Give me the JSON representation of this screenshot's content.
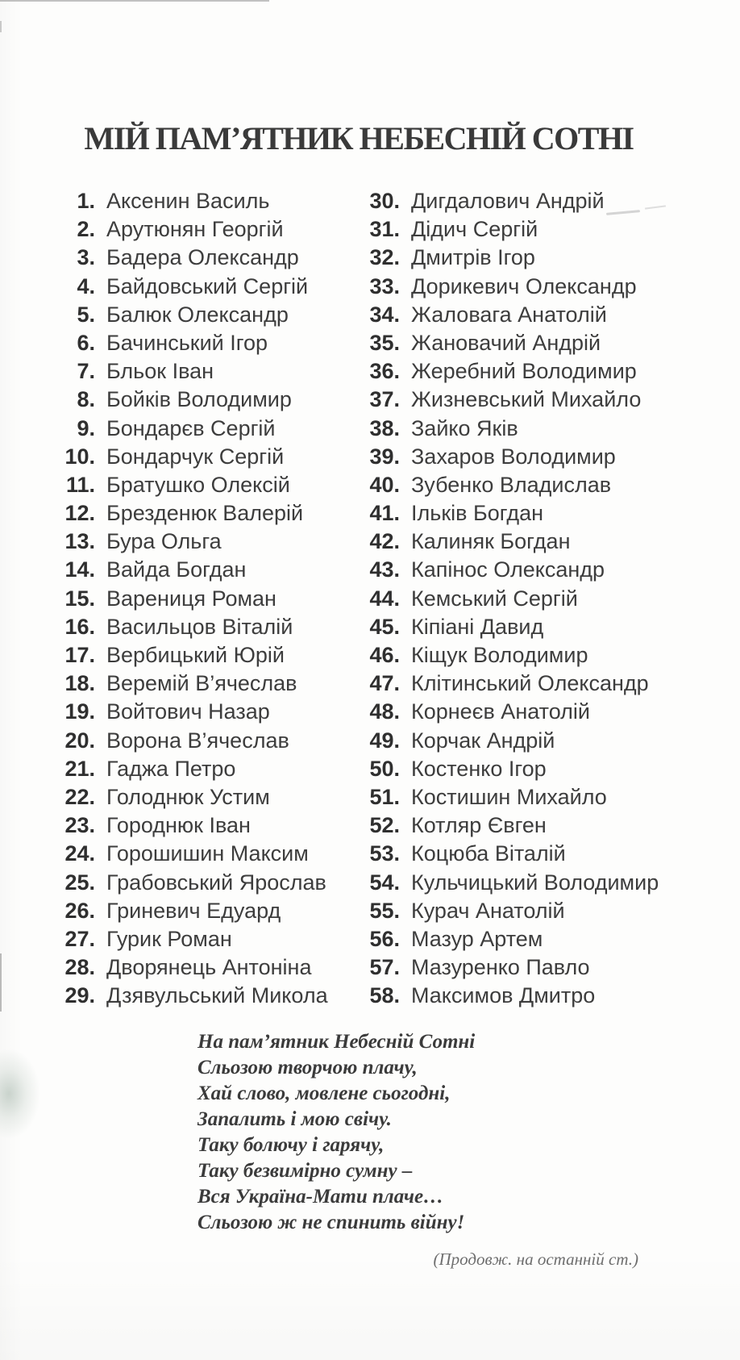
{
  "page": {
    "title": "МІЙ ПАМ’ЯТНИК НЕБЕСНІЙ СОТНІ",
    "list": {
      "left": [
        {
          "num": "1.",
          "name": "Аксенин Василь"
        },
        {
          "num": "2.",
          "name": "Арутюнян Георгій"
        },
        {
          "num": "3.",
          "name": "Бадера Олександр"
        },
        {
          "num": "4.",
          "name": "Байдовський Сергій"
        },
        {
          "num": "5.",
          "name": "Балюк Олександр"
        },
        {
          "num": "6.",
          "name": "Бачинський Ігор"
        },
        {
          "num": "7.",
          "name": "Бльок Іван"
        },
        {
          "num": "8.",
          "name": "Бойків Володимир"
        },
        {
          "num": "9.",
          "name": "Бондарєв Сергій"
        },
        {
          "num": "10.",
          "name": "Бондарчук Сергій"
        },
        {
          "num": "11.",
          "name": "Братушко Олексій"
        },
        {
          "num": "12.",
          "name": "Брезденюк Валерій"
        },
        {
          "num": "13.",
          "name": "Бура Ольга"
        },
        {
          "num": "14.",
          "name": "Вайда Богдан"
        },
        {
          "num": "15.",
          "name": "Варениця Роман"
        },
        {
          "num": "16.",
          "name": "Васильцов Віталій"
        },
        {
          "num": "17.",
          "name": "Вербицький Юрій"
        },
        {
          "num": "18.",
          "name": "Веремій В’ячеслав"
        },
        {
          "num": "19.",
          "name": "Войтович Назар"
        },
        {
          "num": "20.",
          "name": "Ворона В’ячеслав"
        },
        {
          "num": "21.",
          "name": "Гаджа Петро"
        },
        {
          "num": "22.",
          "name": "Голоднюк Устим"
        },
        {
          "num": "23.",
          "name": "Городнюк Іван"
        },
        {
          "num": "24.",
          "name": "Горошишин Максим"
        },
        {
          "num": "25.",
          "name": "Грабовський Ярослав"
        },
        {
          "num": "26.",
          "name": "Гриневич Едуард"
        },
        {
          "num": "27.",
          "name": "Гурик Роман"
        },
        {
          "num": "28.",
          "name": "Дворянець Антоніна"
        },
        {
          "num": "29.",
          "name": "Дзявульський Микола"
        }
      ],
      "right": [
        {
          "num": "30.",
          "name": "Дигдалович Андрій"
        },
        {
          "num": "31.",
          "name": "Дідич Сергій"
        },
        {
          "num": "32.",
          "name": "Дмитрів Ігор"
        },
        {
          "num": "33.",
          "name": "Дорикевич Олександр"
        },
        {
          "num": "34.",
          "name": "Жаловага Анатолій"
        },
        {
          "num": "35.",
          "name": "Жановачий Андрій"
        },
        {
          "num": "36.",
          "name": "Жеребний Володимир"
        },
        {
          "num": "37.",
          "name": "Жизневський Михайло"
        },
        {
          "num": "38.",
          "name": "Зайко Яків"
        },
        {
          "num": "39.",
          "name": "Захаров Володимир"
        },
        {
          "num": "40.",
          "name": "Зубенко Владислав"
        },
        {
          "num": "41.",
          "name": "Ільків Богдан"
        },
        {
          "num": "42.",
          "name": "Калиняк Богдан"
        },
        {
          "num": "43.",
          "name": "Капінос Олександр"
        },
        {
          "num": "44.",
          "name": "Кемський Сергій"
        },
        {
          "num": "45.",
          "name": "Кіпіані Давид"
        },
        {
          "num": "46.",
          "name": "Кіщук Володимир"
        },
        {
          "num": "47.",
          "name": "Клітинський Олександр"
        },
        {
          "num": "48.",
          "name": "Корнеєв Анатолій"
        },
        {
          "num": "49.",
          "name": "Корчак Андрій"
        },
        {
          "num": "50.",
          "name": "Костенко Ігор"
        },
        {
          "num": "51.",
          "name": "Костишин Михайло"
        },
        {
          "num": "52.",
          "name": "Котляр Євген"
        },
        {
          "num": "53.",
          "name": "Коцюба Віталій"
        },
        {
          "num": "54.",
          "name": "Кульчицький Володимир"
        },
        {
          "num": "55.",
          "name": "Курач Анатолій"
        },
        {
          "num": "56.",
          "name": "Мазур Артем"
        },
        {
          "num": "57.",
          "name": "Мазуренко Павло"
        },
        {
          "num": "58.",
          "name": "Максимов Дмитро"
        }
      ]
    },
    "poem": {
      "lines": [
        "На пам’ятник Небесній Сотні",
        "Сльозою творчою плачу,",
        "Хай слово, мовлене сьогодні,",
        "Запалить і мою свічу.",
        "Таку болючу і гарячу,",
        "Таку безвимірно сумну –",
        "Вся Україна-Мати плаче…",
        "Сльозою ж не спинить війну!"
      ]
    },
    "footnote": "(Продовж. на останній ст.)"
  },
  "colors": {
    "paper": "#fdfdfc",
    "title": "#3a3a3a",
    "number": "#2f2f2f",
    "text": "#3d3d3d",
    "poem": "#3b3b3b",
    "note": "#6e6e6e",
    "artifact_green": "#b9c6bd"
  }
}
